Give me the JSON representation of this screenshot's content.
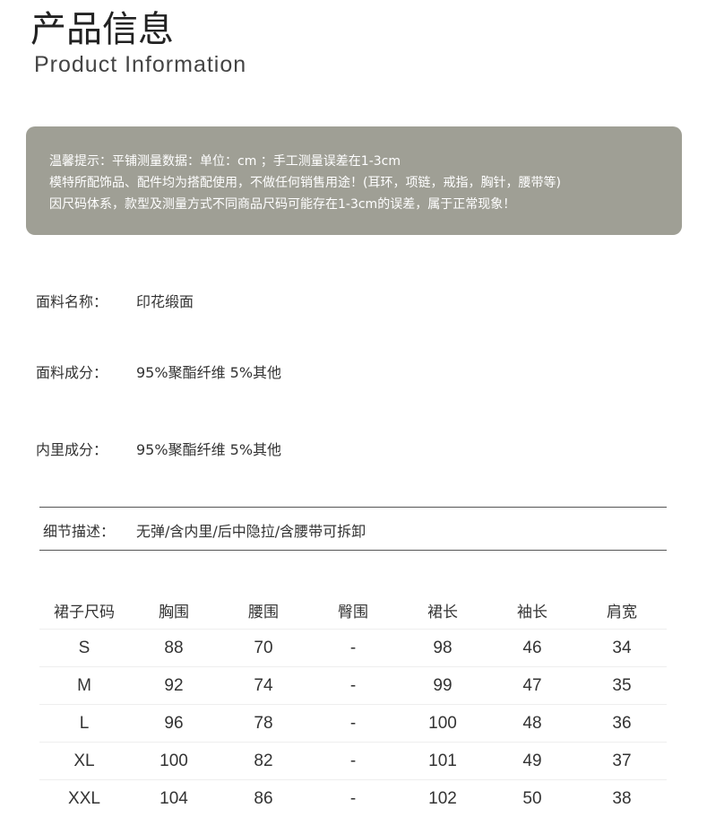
{
  "header": {
    "title": "产品信息",
    "subtitle": "Product Information"
  },
  "notice": {
    "bg_color": "#9f9f95",
    "lines": [
      "温馨提示：平铺测量数据：单位：cm ；手工测量误差在1-3cm",
      "模特所配饰品、配件均为搭配使用，不做任何销售用途！(耳环，项链，戒指，胸针，腰带等)",
      "因尺码体系，款型及测量方式不同商品尺码可能存在1-3cm的误差，属于正常现象！"
    ]
  },
  "fabric": [
    {
      "label": "面料名称：",
      "value": "印花缎面"
    },
    {
      "label": "面料成分：",
      "value": "95%聚酯纤维 5%其他"
    },
    {
      "label": "内里成分：",
      "value": "95%聚酯纤维 5%其他"
    }
  ],
  "detail": {
    "label": "细节描述：",
    "value": "无弹/含内里/后中隐拉/含腰带可拆卸"
  },
  "size_table": {
    "headers": [
      "裙子尺码",
      "胸围",
      "腰围",
      "臀围",
      "裙长",
      "袖长",
      "肩宽"
    ],
    "rows": [
      [
        "S",
        "88",
        "70",
        "-",
        "98",
        "46",
        "34"
      ],
      [
        "M",
        "92",
        "74",
        "-",
        "99",
        "47",
        "35"
      ],
      [
        "L",
        "96",
        "78",
        "-",
        "100",
        "48",
        "36"
      ],
      [
        "XL",
        "100",
        "82",
        "-",
        "101",
        "49",
        "37"
      ],
      [
        "XXL",
        "104",
        "86",
        "-",
        "102",
        "50",
        "38"
      ]
    ]
  }
}
